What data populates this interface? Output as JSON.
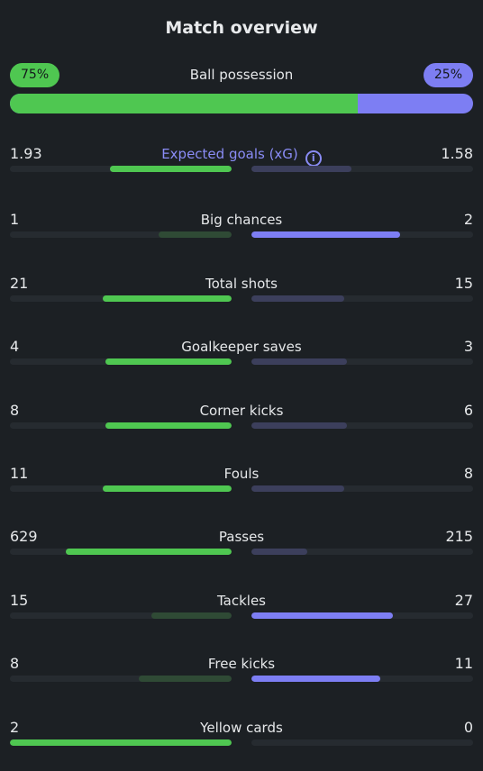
{
  "title": "Match overview",
  "possession": {
    "label": "Ball possession",
    "home": "75%",
    "away": "25%",
    "home_fraction": 0.75
  },
  "colors": {
    "home": "#4fc751",
    "home_dim": "#2f4a35",
    "away": "#7d7ef3",
    "away_dim": "#3c3f5c",
    "background": "#1c2024"
  },
  "stats": [
    {
      "label": "Expected goals (xG)",
      "home": "1.93",
      "away": "1.58",
      "home_fill": 0.55,
      "away_fill": 0.45,
      "info": true
    },
    {
      "label": "Big chances",
      "home": "1",
      "away": "2",
      "home_fill": 0.33,
      "away_fill": 0.67
    },
    {
      "label": "Total shots",
      "home": "21",
      "away": "15",
      "home_fill": 0.58,
      "away_fill": 0.42
    },
    {
      "label": "Goalkeeper saves",
      "home": "4",
      "away": "3",
      "home_fill": 0.57,
      "away_fill": 0.43
    },
    {
      "label": "Corner kicks",
      "home": "8",
      "away": "6",
      "home_fill": 0.57,
      "away_fill": 0.43
    },
    {
      "label": "Fouls",
      "home": "11",
      "away": "8",
      "home_fill": 0.58,
      "away_fill": 0.42
    },
    {
      "label": "Passes",
      "home": "629",
      "away": "215",
      "home_fill": 0.75,
      "away_fill": 0.25
    },
    {
      "label": "Tackles",
      "home": "15",
      "away": "27",
      "home_fill": 0.36,
      "away_fill": 0.64
    },
    {
      "label": "Free kicks",
      "home": "8",
      "away": "11",
      "home_fill": 0.42,
      "away_fill": 0.58
    },
    {
      "label": "Yellow cards",
      "home": "2",
      "away": "0",
      "home_fill": 1.0,
      "away_fill": 0.0
    }
  ]
}
